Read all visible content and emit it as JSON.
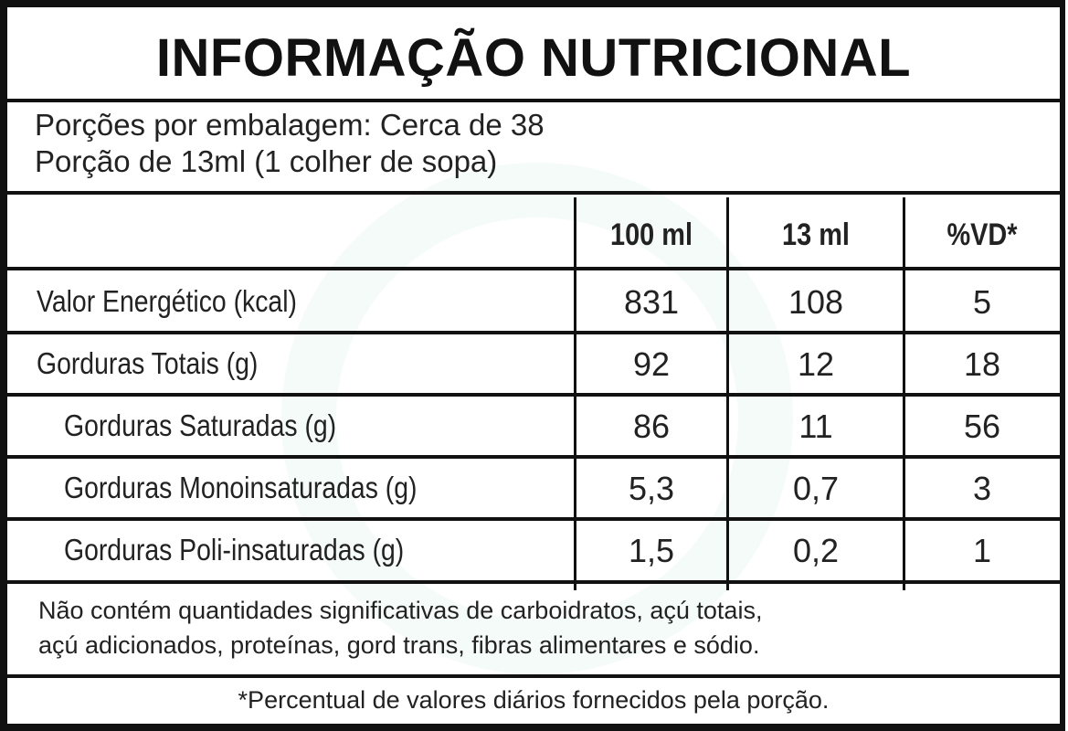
{
  "title": "INFORMAÇÃO NUTRICIONAL",
  "servings": {
    "per_package": "Porções por embalagem: Cerca de 38",
    "portion": "Porção de 13ml (1 colher de sopa)"
  },
  "table": {
    "headers": [
      "",
      "100 ml",
      "13 ml",
      "%VD*"
    ],
    "rows": [
      {
        "label": "Valor Energético (kcal)",
        "indent": false,
        "v100": "831",
        "vportion": "108",
        "vd": "5"
      },
      {
        "label": "Gorduras Totais (g)",
        "indent": false,
        "v100": "92",
        "vportion": "12",
        "vd": "18"
      },
      {
        "label": "Gorduras Saturadas (g)",
        "indent": true,
        "v100": "86",
        "vportion": "11",
        "vd": "56"
      },
      {
        "label": "Gorduras Monoinsaturadas (g)",
        "indent": true,
        "v100": "5,3",
        "vportion": "0,7",
        "vd": "3"
      },
      {
        "label": "Gorduras Poli-insaturadas (g)",
        "indent": true,
        "v100": "1,5",
        "vportion": "0,2",
        "vd": "1"
      }
    ]
  },
  "footnote": {
    "line1": "Não contém quantidades significativas de carboidratos, açú totais,",
    "line2": "açú adicionados, proteínas, gord trans, fibras alimentares e sódio.",
    "vd_note": "*Percentual de valores diários fornecidos pela porção."
  }
}
